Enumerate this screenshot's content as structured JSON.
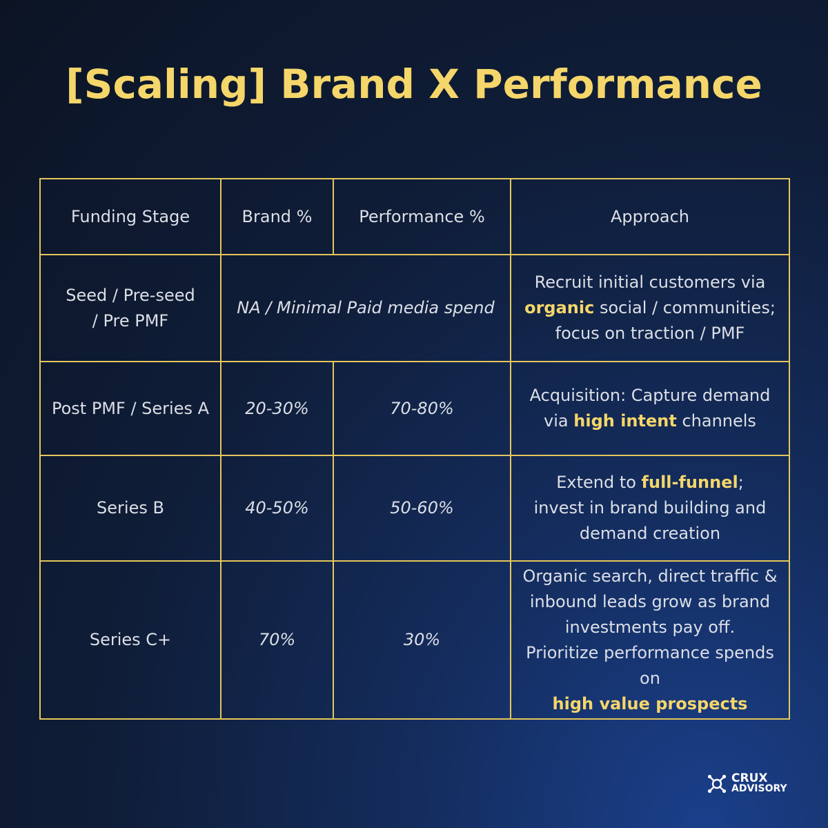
{
  "title": "[Scaling] Brand X Performance",
  "headers": {
    "stage": "Funding Stage",
    "brand": "Brand %",
    "performance": "Performance %",
    "approach": "Approach"
  },
  "rows": [
    {
      "stage_line1": "Seed / Pre-seed",
      "stage_line2": "/ Pre PMF",
      "merged_value": "NA / Minimal Paid media spend",
      "approach": {
        "l1": "Recruit initial customers via",
        "l2_highlight": "organic",
        "l2_rest": " social / communities;",
        "l3": "focus on traction / PMF"
      }
    },
    {
      "stage": "Post PMF / Series A",
      "brand": "20-30%",
      "performance": "70-80%",
      "approach": {
        "l1": "Acquisition: Capture demand",
        "l2_pre": "via ",
        "l2_highlight": "high intent",
        "l2_rest": " channels"
      }
    },
    {
      "stage": "Series B",
      "brand": "40-50%",
      "performance": "50-60%",
      "approach": {
        "l1_pre": "Extend to ",
        "l1_highlight": "full-funnel",
        "l1_rest": ";",
        "l2": "invest in brand building and",
        "l3": "demand creation"
      }
    },
    {
      "stage": "Series C+",
      "brand": "70%",
      "performance": "30%",
      "approach": {
        "l1": "Organic search, direct traffic &",
        "l2": "inbound leads grow as brand",
        "l3": "investments pay off.",
        "l4": "Prioritize performance spends on",
        "l5_highlight": "high value prospects"
      }
    }
  ],
  "logo": {
    "line1": "CRUX",
    "line2": "ADVISORY",
    "icon": "crux-network-icon"
  },
  "colors": {
    "accent": "#f5d66a",
    "border": "#e6c75c",
    "background": "#0f1d38",
    "text": "#dcdfe6"
  }
}
